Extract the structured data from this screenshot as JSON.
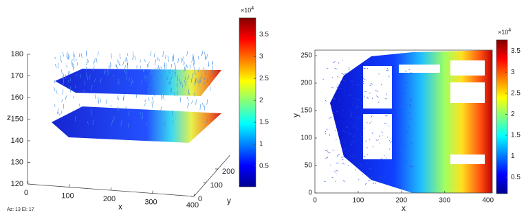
{
  "chart_data": [
    {
      "type": "quiver3",
      "xlabel": "x",
      "ylabel": "y",
      "zlabel": "z",
      "xlim": [
        0,
        400
      ],
      "ylim": [
        0,
        300
      ],
      "zlim": [
        120,
        180
      ],
      "xticks": [
        0,
        100,
        200,
        300,
        400
      ],
      "yticks": [
        0,
        100,
        200
      ],
      "zticks": [
        120,
        130,
        140,
        150,
        160,
        170,
        180
      ],
      "view_label": "Az:  13 El:  17",
      "colormap": "jet",
      "colorbar": {
        "clim": [
          0.03,
          3.88
        ],
        "ticks": [
          0.5,
          1,
          1.5,
          2,
          2.5,
          3,
          3.5
        ],
        "multiplier": "×10",
        "exponent": "4"
      }
    },
    {
      "type": "quiver",
      "xlabel": "x",
      "ylabel": "y",
      "xlim": [
        0,
        410
      ],
      "ylim": [
        0,
        260
      ],
      "xticks": [
        0,
        100,
        200,
        300,
        400
      ],
      "yticks": [
        0,
        50,
        100,
        150,
        200,
        250
      ],
      "colormap": "jet",
      "colorbar": {
        "clim": [
          0.11,
          3.77
        ],
        "ticks": [
          0.5,
          1,
          1.5,
          2,
          2.5,
          3,
          3.5
        ],
        "multiplier": "×10",
        "exponent": "4"
      }
    }
  ]
}
